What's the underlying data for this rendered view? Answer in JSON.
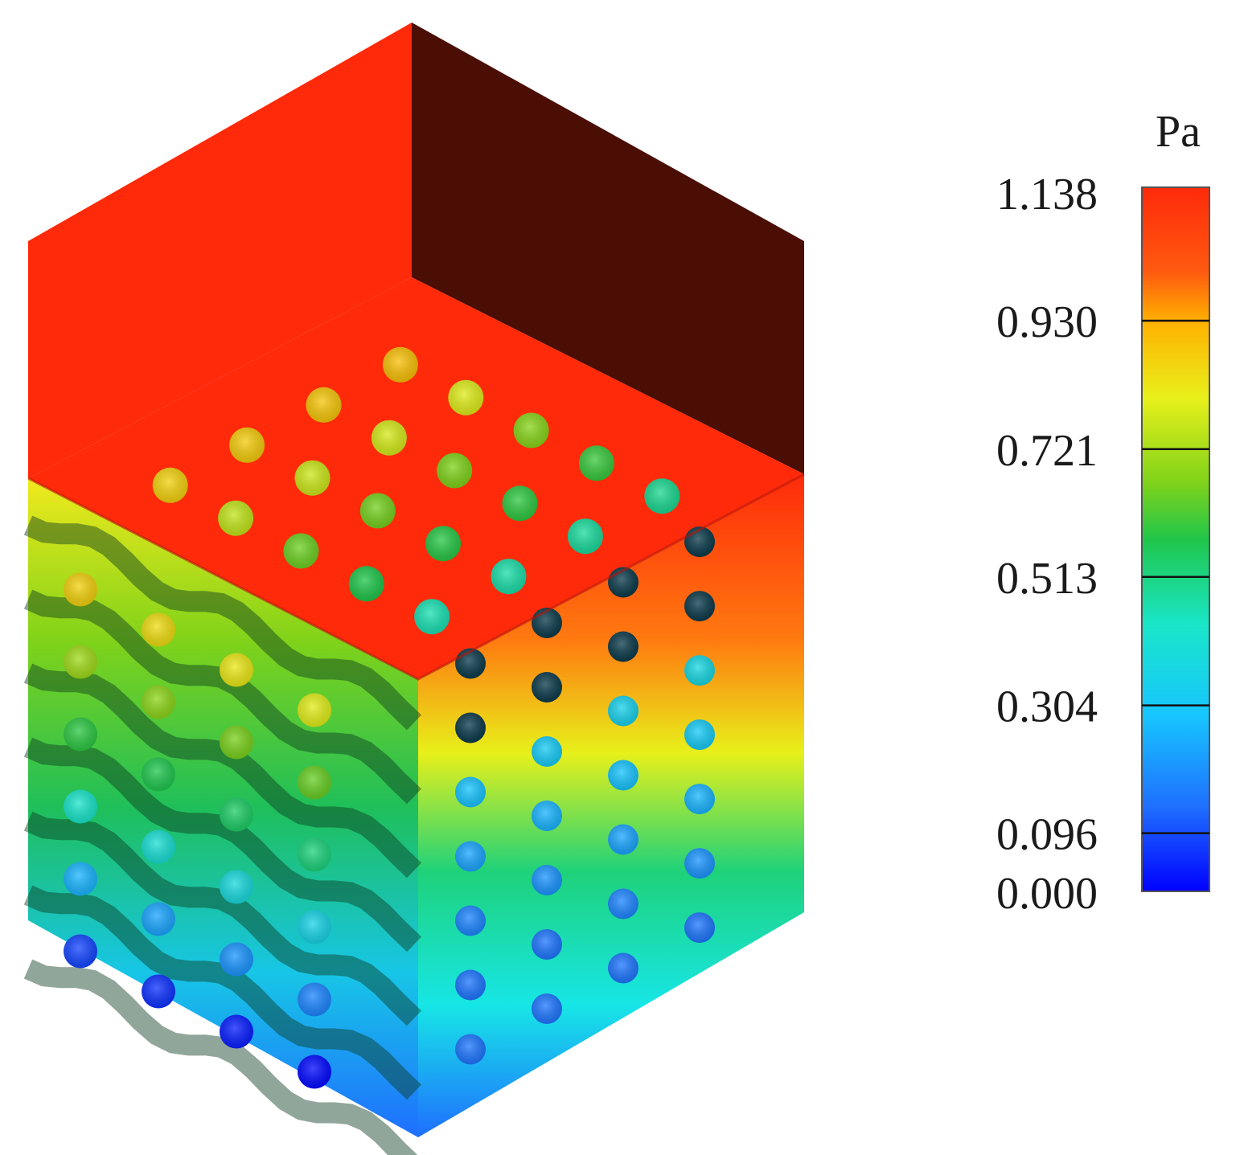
{
  "colorbar": {
    "unit": "Pa",
    "ticks": [
      "1.138",
      "0.930",
      "0.721",
      "0.513",
      "0.304",
      "0.096",
      "0.000"
    ],
    "values": [
      1.138,
      0.93,
      0.721,
      0.513,
      0.304,
      0.096,
      0.0
    ],
    "range": [
      0.0,
      1.138
    ],
    "colormap": [
      "#0000ff",
      "#1f6fff",
      "#17c6ff",
      "#19e6c8",
      "#20c64a",
      "#7fd21a",
      "#e8f01a",
      "#ffb000",
      "#ff5a10",
      "#ff2a0a"
    ]
  },
  "colors": {
    "high": "#ff2a0a",
    "back_wall": "#4a0e05",
    "background": "#ffffff"
  }
}
